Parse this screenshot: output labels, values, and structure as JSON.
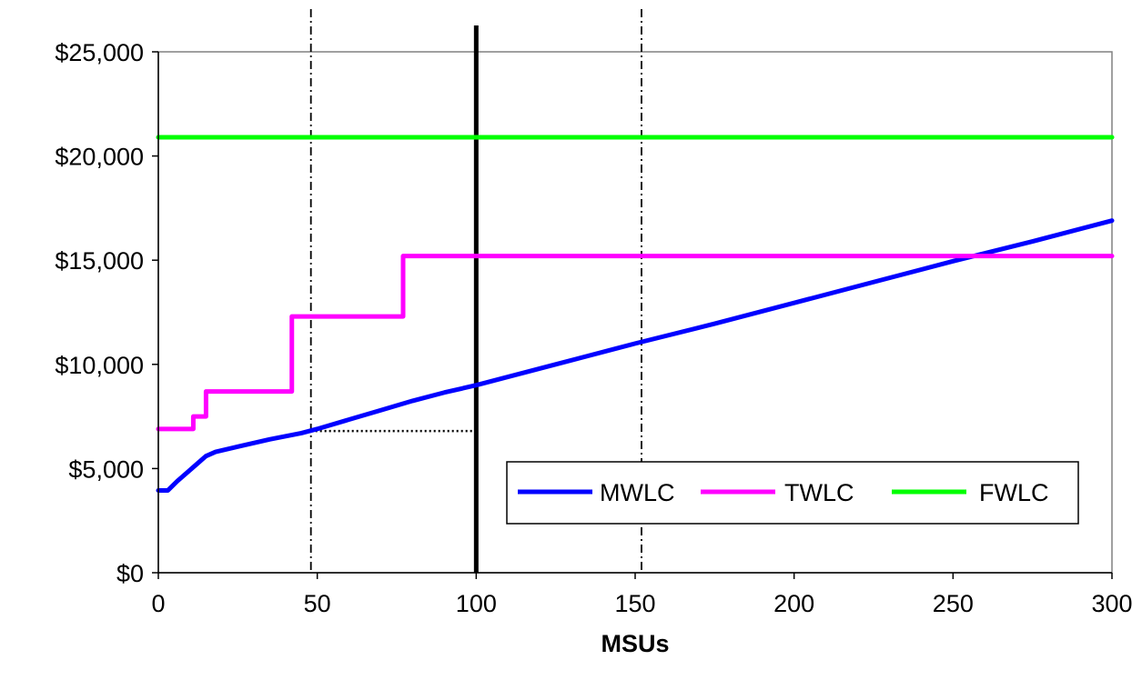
{
  "chart_data": {
    "type": "line",
    "title": "",
    "xlabel": "MSUs",
    "ylabel": "",
    "xlim": [
      0,
      300
    ],
    "ylim": [
      0,
      25000
    ],
    "x_ticks": [
      0,
      50,
      100,
      150,
      200,
      250,
      300
    ],
    "x_tick_labels": [
      "0",
      "50",
      "100",
      "150",
      "200",
      "250",
      "300"
    ],
    "y_ticks": [
      0,
      5000,
      10000,
      15000,
      20000,
      25000
    ],
    "y_tick_labels": [
      "$0",
      "$5,000",
      "$10,000",
      "$15,000",
      "$20,000",
      "$25,000"
    ],
    "grid": false,
    "legend_position": "bottom-right",
    "series": [
      {
        "name": "MWLC",
        "color": "#0000ff",
        "x": [
          0,
          3,
          6,
          9,
          12,
          15,
          18,
          25,
          35,
          45,
          50,
          60,
          70,
          80,
          90,
          100,
          125,
          150,
          175,
          200,
          225,
          250,
          275,
          300
        ],
        "y": [
          3950,
          3950,
          4400,
          4800,
          5200,
          5600,
          5800,
          6050,
          6400,
          6700,
          6900,
          7350,
          7800,
          8250,
          8650,
          9000,
          10000,
          11000,
          11950,
          12950,
          13950,
          14950,
          15900,
          16900
        ]
      },
      {
        "name": "TWLC",
        "color": "#ff00ff",
        "x": [
          0,
          11,
          11,
          15,
          15,
          42,
          42,
          77,
          77,
          300
        ],
        "y": [
          6900,
          6900,
          7500,
          7500,
          8700,
          8700,
          12300,
          12300,
          15200,
          15200
        ]
      },
      {
        "name": "FWLC",
        "color": "#00ff00",
        "x": [
          0,
          300
        ],
        "y": [
          20900,
          20900
        ]
      }
    ],
    "reference_lines": {
      "vertical_solid": [
        100
      ],
      "vertical_dashdot": [
        48,
        152
      ],
      "horizontal_dotted": {
        "y": 6800,
        "x_from": 48,
        "x_to": 100
      }
    }
  }
}
